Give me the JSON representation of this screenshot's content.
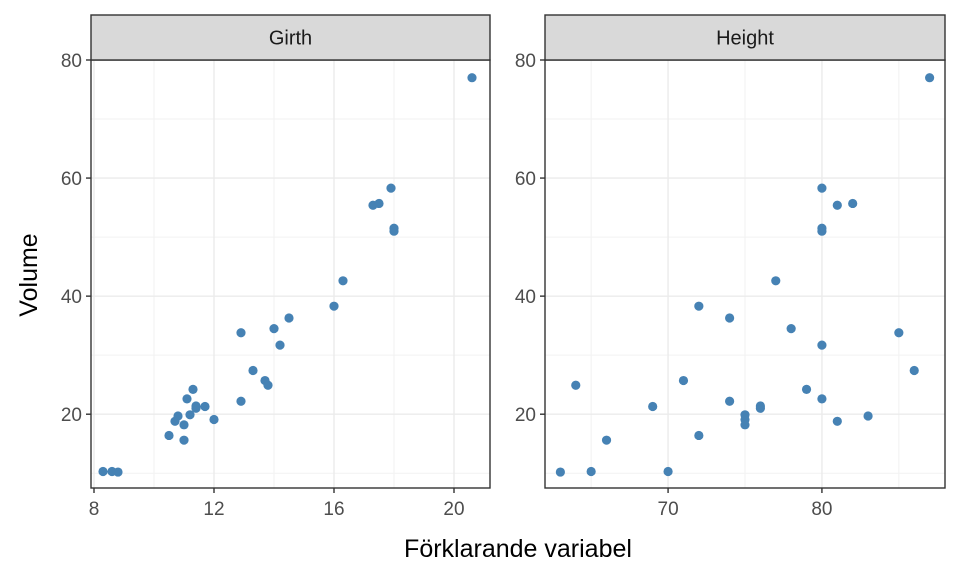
{
  "chart_data": {
    "type": "scatter",
    "xlabel": "Förklarande variabel",
    "ylabel": "Volume",
    "grid": true,
    "point_color": "#4682B4",
    "panels": [
      {
        "name": "Girth",
        "xlim": [
          7.9,
          21.2
        ],
        "ylim": [
          7.5,
          80.0
        ],
        "xticks": [
          8,
          12,
          16,
          20
        ],
        "yticks": [
          20,
          40,
          60,
          80
        ],
        "x": [
          8.3,
          8.6,
          8.8,
          10.5,
          10.7,
          10.8,
          11.0,
          11.0,
          11.1,
          11.2,
          11.3,
          11.4,
          11.4,
          11.7,
          12.0,
          12.9,
          12.9,
          13.3,
          13.7,
          13.8,
          14.0,
          14.2,
          14.5,
          16.0,
          16.3,
          17.3,
          17.5,
          17.9,
          18.0,
          18.0,
          20.6
        ],
        "y": [
          10.3,
          10.3,
          10.2,
          16.4,
          18.8,
          19.7,
          15.6,
          18.2,
          22.6,
          19.9,
          24.2,
          21.0,
          21.4,
          21.3,
          19.1,
          22.2,
          33.8,
          27.4,
          25.7,
          24.9,
          34.5,
          31.7,
          36.3,
          38.3,
          42.6,
          55.4,
          55.7,
          58.3,
          51.5,
          51.0,
          77.0
        ]
      },
      {
        "name": "Height",
        "xlim": [
          62.0,
          88.0
        ],
        "ylim": [
          7.5,
          80.0
        ],
        "xticks": [
          70,
          80
        ],
        "yticks": [
          20,
          40,
          60,
          80
        ],
        "x": [
          70,
          65,
          63,
          72,
          81,
          83,
          66,
          75,
          80,
          75,
          79,
          76,
          76,
          69,
          75,
          74,
          85,
          86,
          71,
          64,
          78,
          80,
          74,
          72,
          77,
          81,
          82,
          80,
          80,
          80,
          87
        ],
        "y": [
          10.3,
          10.3,
          10.2,
          16.4,
          18.8,
          19.7,
          15.6,
          18.2,
          22.6,
          19.9,
          24.2,
          21.0,
          21.4,
          21.3,
          19.1,
          22.2,
          33.8,
          27.4,
          25.7,
          24.9,
          34.5,
          31.7,
          36.3,
          38.3,
          42.6,
          55.4,
          55.7,
          58.3,
          51.5,
          51.0,
          77.0
        ]
      }
    ]
  }
}
